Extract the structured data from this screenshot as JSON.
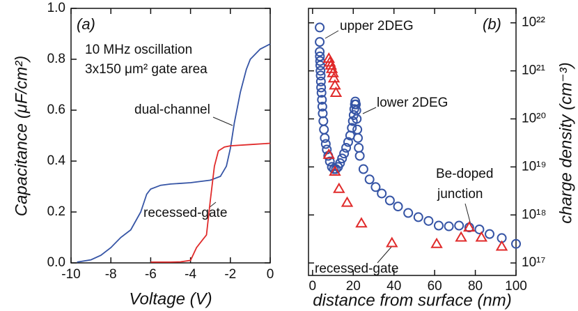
{
  "chart_data": [
    {
      "type": "line",
      "panel_label": "(a)",
      "x_label": "Voltage (V)",
      "y_label": "Capacitance (μF/cm²)",
      "annotations": [
        "10 MHz oscillation",
        "3x150 μm² gate area",
        "dual-channel",
        "recessed-gate"
      ],
      "xlim": [
        -10,
        0
      ],
      "xticks": [
        -10,
        -8,
        -6,
        -4,
        -2,
        0
      ],
      "ylim": [
        0,
        1.0
      ],
      "yticks": [
        {
          "value": 0,
          "label": "0.0"
        },
        0.2,
        0.4,
        0.6,
        0.8,
        {
          "value": 1.0,
          "label": "1.0"
        }
      ],
      "y_axis_side": "left",
      "series": [
        {
          "color": "#3554a5",
          "x": [
            -9.7,
            -9,
            -8.5,
            -8,
            -7.5,
            -7,
            -6.5,
            -6.2,
            -6,
            -5.5,
            -5,
            -4,
            -3,
            -2.5,
            -2.2,
            -2,
            -1.8,
            -1.5,
            -1.2,
            -1,
            -0.5,
            0
          ],
          "values": [
            0.003,
            0.012,
            0.03,
            0.06,
            0.1,
            0.13,
            0.2,
            0.27,
            0.29,
            0.305,
            0.31,
            0.315,
            0.325,
            0.34,
            0.38,
            0.45,
            0.55,
            0.67,
            0.76,
            0.8,
            0.84,
            0.86
          ]
        },
        {
          "color": "#e02a2a",
          "x": [
            -6,
            -5,
            -4.5,
            -4,
            -3.7,
            -3.4,
            -3.2,
            -3,
            -2.8,
            -2.6,
            -2.3,
            -2,
            -1,
            0
          ],
          "values": [
            0.003,
            0.003,
            0.004,
            0.01,
            0.06,
            0.09,
            0.11,
            0.25,
            0.38,
            0.44,
            0.455,
            0.46,
            0.465,
            0.47
          ]
        }
      ]
    },
    {
      "type": "scatter",
      "panel_label": "(b)",
      "x_label": "distance from surface (nm)",
      "y_label": "charge density (cm⁻³)",
      "annotations": [
        "upper 2DEG",
        "lower 2DEG",
        "Be-doped",
        "junction",
        "recessed-gate"
      ],
      "xlim": [
        -2,
        100
      ],
      "xticks": [
        0,
        20,
        40,
        60,
        80,
        100
      ],
      "log_scale": true,
      "ylim": [
        5.5e+16,
        2e+22
      ],
      "yticks": [
        {
          "value": 1e+17,
          "label": "10¹⁷"
        },
        {
          "value": 1e+18,
          "label": "10¹⁸"
        },
        {
          "value": 1e+19,
          "label": "10¹⁹"
        },
        {
          "value": 1e+20,
          "label": "10²⁰"
        },
        {
          "value": 1e+21,
          "label": "10²¹"
        },
        {
          "value": 1e+22,
          "label": "10²²"
        }
      ],
      "y_axis_side": "right",
      "series": [
        {
          "color": "#3554a5",
          "marker": "circle",
          "x": [
            3.5,
            3.5,
            3.5,
            3.6,
            3.7,
            3.8,
            3.9,
            4,
            4.1,
            4.2,
            4.4,
            4.6,
            4.8,
            5,
            5.3,
            5.6,
            6,
            6.5,
            7,
            7.7,
            8.5,
            9.5,
            10.5,
            11.5,
            12.5,
            13.5,
            14.5,
            15.5,
            16.5,
            17.5,
            18.5,
            19.3,
            19.8,
            20.2,
            20.5,
            20.8,
            21,
            21.3,
            21.5,
            21.7,
            22,
            22.3,
            22.7,
            23.2,
            25,
            28,
            31,
            34,
            38,
            42,
            47,
            52,
            57,
            62,
            67,
            72,
            77,
            82,
            87,
            93,
            100
          ],
          "values": [
            8e+21,
            4e+21,
            2.5e+21,
            2e+21,
            1.6e+21,
            1.3e+21,
            1e+21,
            8e+20,
            6e+20,
            4.5e+20,
            3.5e+20,
            2.5e+20,
            1.8e+20,
            1.3e+20,
            9e+19,
            6e+19,
            4e+19,
            3e+19,
            2.3e+19,
            1.7e+19,
            1.3e+19,
            1e+19,
            9e+18,
            9e+18,
            1e+19,
            1.2e+19,
            1.5e+19,
            1.9e+19,
            2.5e+19,
            3.3e+19,
            4.5e+19,
            6.5e+19,
            9e+19,
            1.2e+20,
            1.6e+20,
            2e+20,
            2.3e+20,
            2e+20,
            1.5e+20,
            1e+20,
            6e+19,
            4e+19,
            2.5e+19,
            1.7e+19,
            9e+18,
            5.5e+18,
            3.8e+18,
            2.8e+18,
            2e+18,
            1.5e+18,
            1.1e+18,
            9e+17,
            7.5e+17,
            6e+17,
            5.8e+17,
            6e+17,
            5.5e+17,
            5e+17,
            4e+17,
            3.3e+17,
            2.5e+17
          ]
        },
        {
          "color": "#e02a2a",
          "marker": "triangle",
          "x": [
            8,
            8.5,
            9,
            9.5,
            10,
            10.5,
            11,
            11.5,
            8,
            11,
            13,
            17,
            24,
            39,
            61,
            73,
            77,
            83,
            93
          ],
          "values": [
            1.8e+21,
            1.5e+21,
            1.3e+21,
            1.1e+21,
            9e+20,
            7e+20,
            5e+20,
            3.5e+20,
            1.8e+19,
            8e+18,
            3.5e+18,
            1.8e+18,
            6.7e+17,
            2.6e+17,
            2.5e+17,
            3.4e+17,
            5.5e+17,
            3.4e+17,
            2.2e+17
          ]
        }
      ]
    }
  ]
}
